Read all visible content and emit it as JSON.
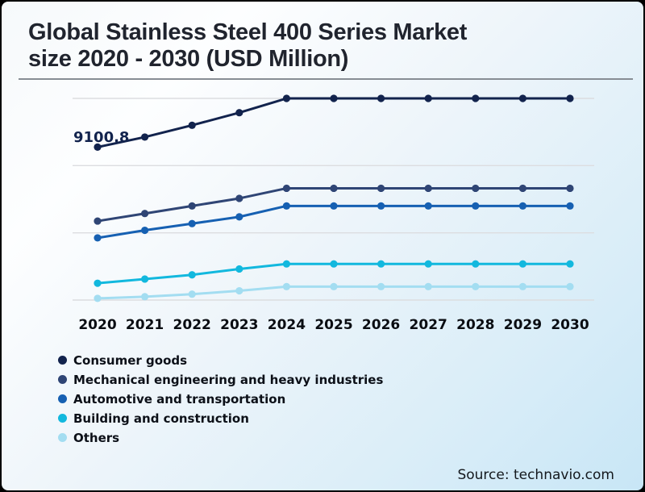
{
  "page": {
    "title_line1": "Global Stainless Steel 400 Series Market",
    "title_line2": "size 2020 - 2030 (USD Million)",
    "source": "Source: technavio.com"
  },
  "chart_data": {
    "type": "line",
    "title": "Global Stainless Steel 400 Series Market size 2020 - 2030 (USD Million)",
    "xlabel": "",
    "ylabel": "USD Million",
    "categories": [
      "2020",
      "2021",
      "2022",
      "2023",
      "2024",
      "2025",
      "2026",
      "2027",
      "2028",
      "2029",
      "2030"
    ],
    "series": [
      {
        "name": "Consumer goods",
        "color": "#12234d",
        "values": [
          9100.8,
          9700,
          10400,
          11150,
          12000,
          12000,
          12000,
          12000,
          12000,
          12000,
          12000
        ]
      },
      {
        "name": "Mechanical engineering and heavy industries",
        "color": "#2f4575",
        "values": [
          4700,
          5150,
          5600,
          6050,
          6650,
          6650,
          6650,
          6650,
          6650,
          6650,
          6650
        ]
      },
      {
        "name": "Automotive and transportation",
        "color": "#1660b2",
        "values": [
          3700,
          4150,
          4550,
          4950,
          5600,
          5600,
          5600,
          5600,
          5600,
          5600,
          5600
        ]
      },
      {
        "name": "Building and construction",
        "color": "#12b8de",
        "values": [
          1000,
          1250,
          1500,
          1850,
          2150,
          2150,
          2150,
          2150,
          2150,
          2150,
          2150
        ]
      },
      {
        "name": "Others",
        "color": "#a3ddf1",
        "values": [
          100,
          200,
          350,
          550,
          800,
          800,
          800,
          800,
          800,
          800,
          800
        ]
      }
    ],
    "ylim": [
      0,
      12000
    ],
    "gridline_values": [
      0,
      4000,
      8000,
      12000
    ],
    "y_axis_labels_visible": false,
    "grid": "horizontal",
    "legend_position": "bottom-left",
    "point_label": {
      "series": "Consumer goods",
      "category": "2020",
      "text": "9100.8"
    }
  }
}
